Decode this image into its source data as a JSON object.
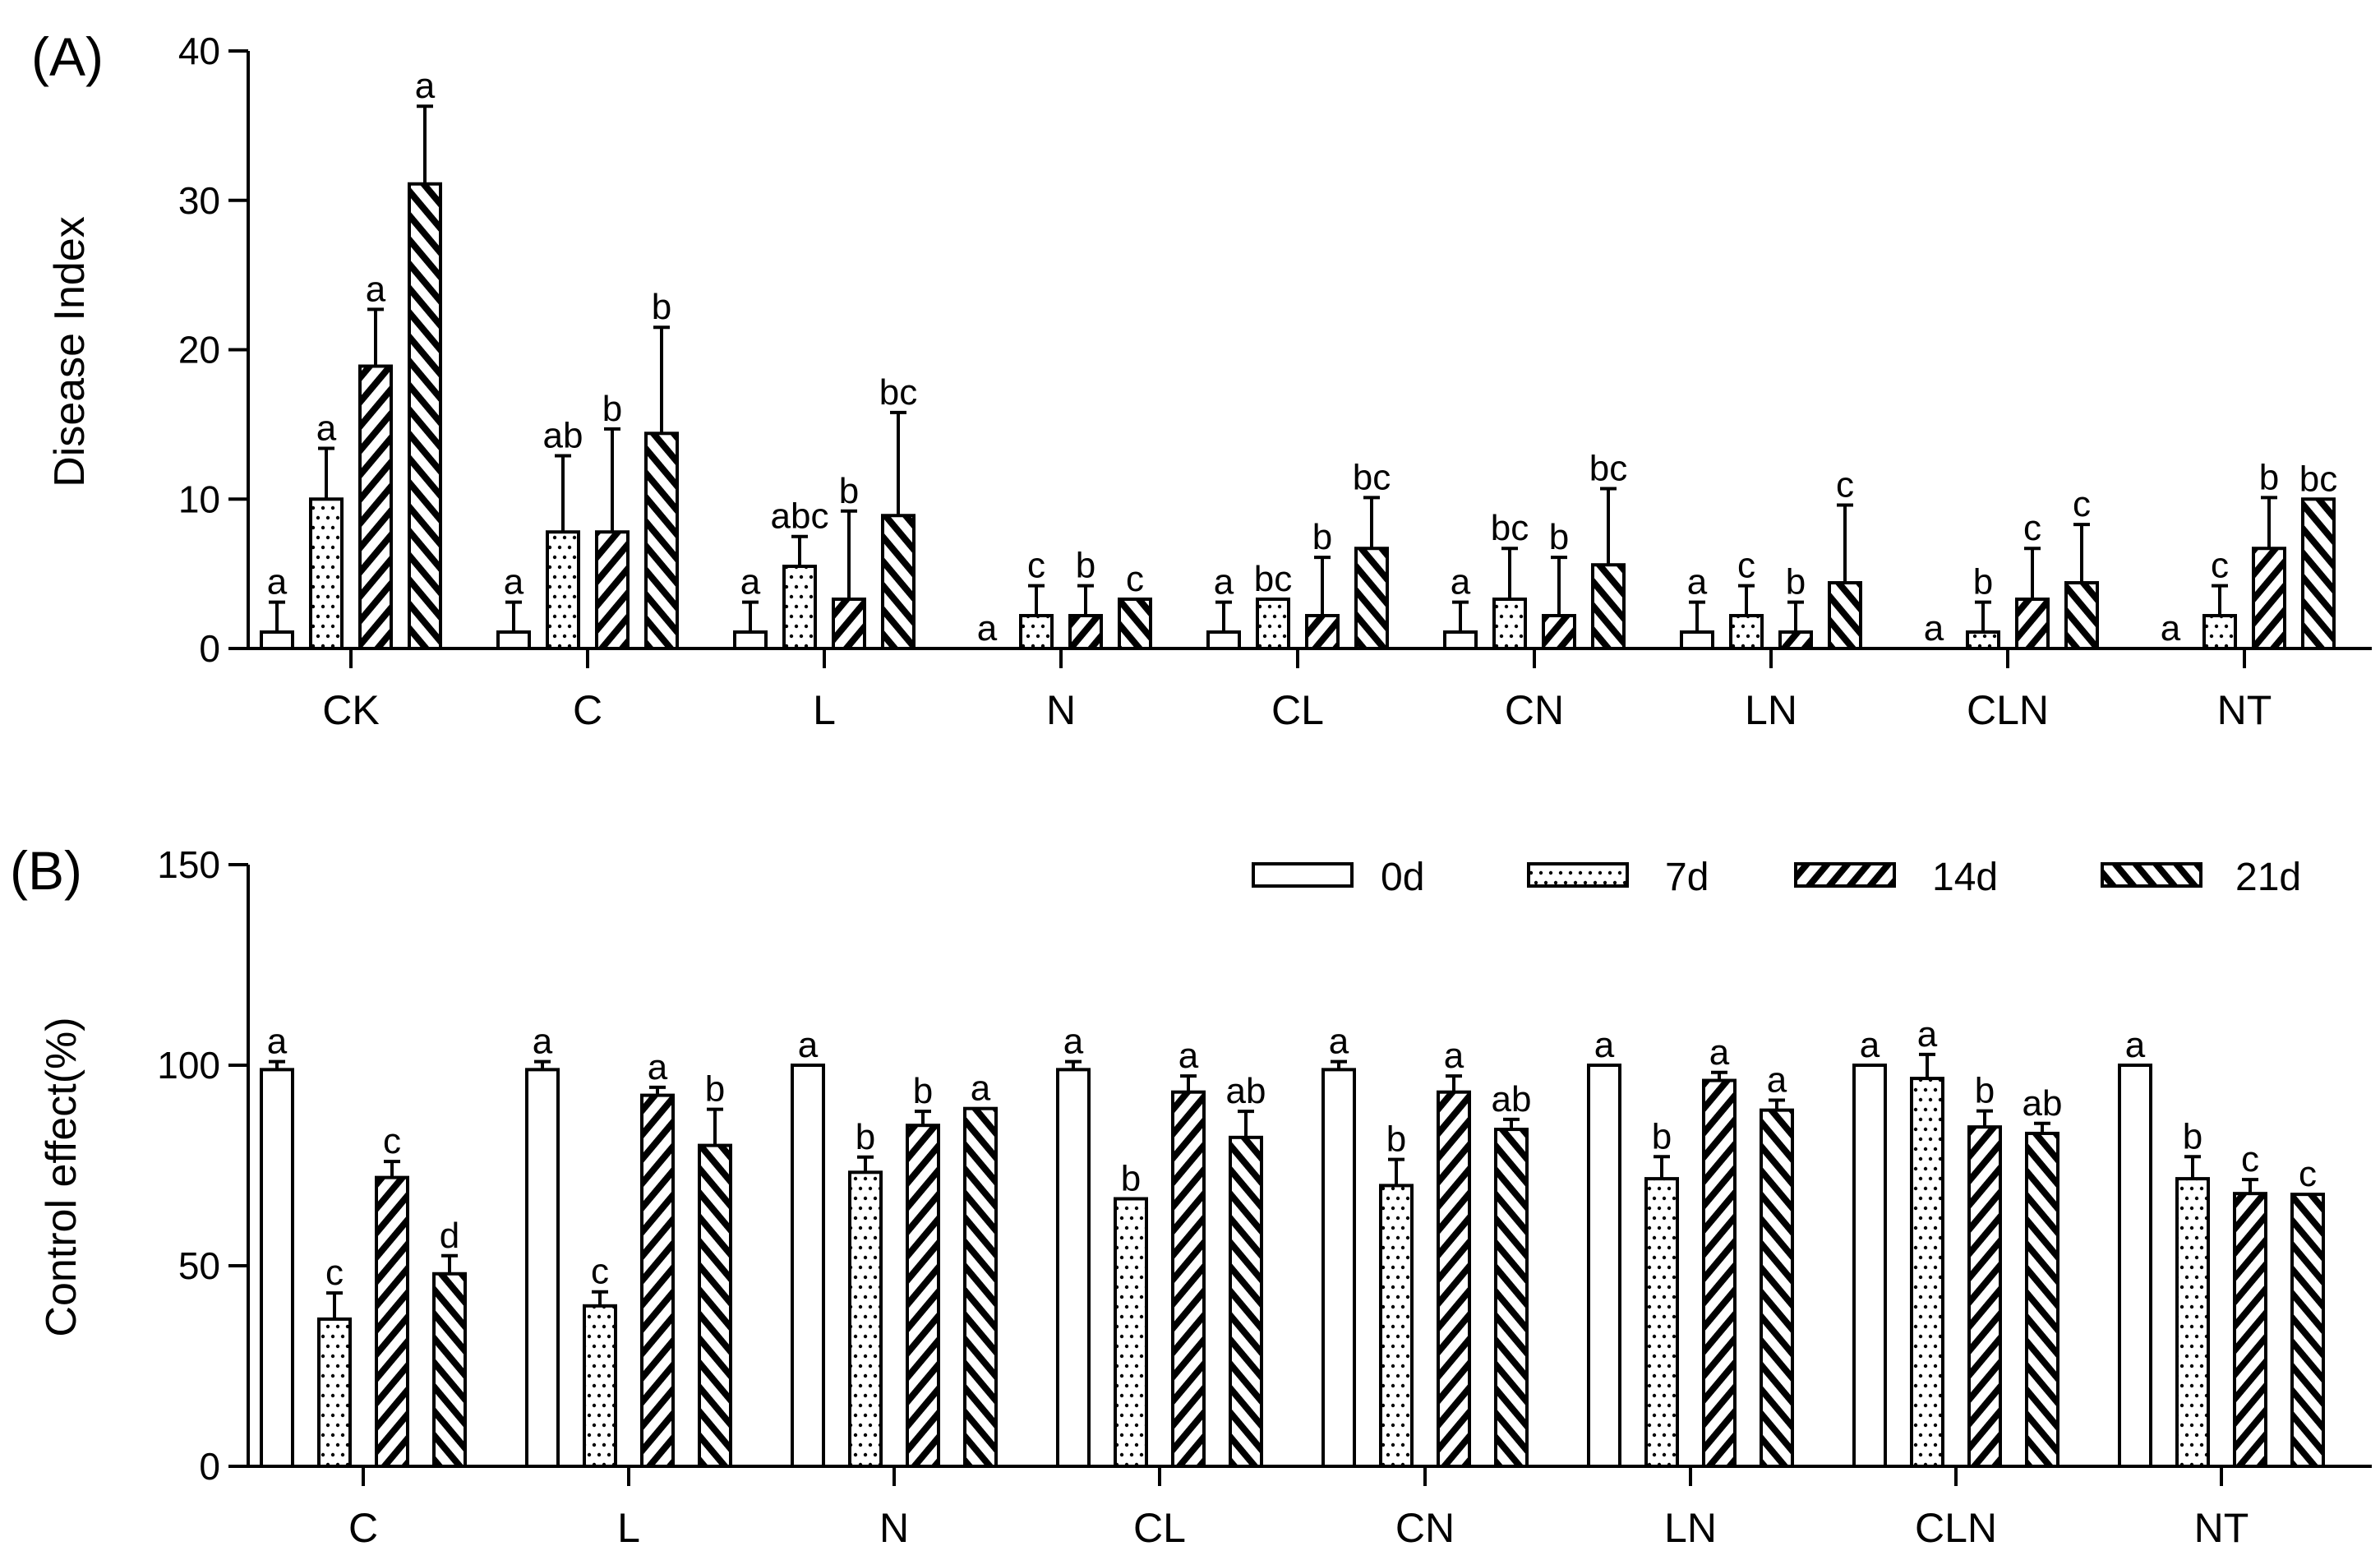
{
  "legend": {
    "items": [
      "0d",
      "7d",
      "14d",
      "21d"
    ]
  },
  "chart_data": [
    {
      "panel": "(A)",
      "type": "bar",
      "ylabel": "Disease Index",
      "ylim": [
        0,
        40
      ],
      "yticks": [
        0,
        10,
        20,
        30,
        40
      ],
      "categories": [
        "CK",
        "C",
        "L",
        "N",
        "CL",
        "CN",
        "LN",
        "CLN",
        "NT"
      ],
      "series": [
        {
          "name": "0d",
          "pattern": "empty",
          "values": [
            1.1,
            1.1,
            1.1,
            0,
            1.1,
            1.1,
            1.1,
            0,
            0
          ],
          "errors": [
            2,
            2,
            2,
            0,
            2,
            2,
            2,
            0,
            0
          ],
          "letters": [
            "a",
            "a",
            "a",
            "a",
            "a",
            "a",
            "a",
            "a",
            "a"
          ]
        },
        {
          "name": "7d",
          "pattern": "dots",
          "values": [
            10,
            7.8,
            5.5,
            2.2,
            3.3,
            3.3,
            2.2,
            1.1,
            2.2
          ],
          "errors": [
            3.4,
            5.1,
            2,
            2,
            0,
            3.4,
            2,
            2,
            2
          ],
          "letters": [
            "a",
            "ab",
            "abc",
            "c",
            "bc",
            "bc",
            "c",
            "b",
            "c"
          ]
        },
        {
          "name": "14d",
          "pattern": "hatch-right",
          "values": [
            18.9,
            7.8,
            3.3,
            2.2,
            2.2,
            2.2,
            1.1,
            3.3,
            6.7
          ],
          "errors": [
            3.8,
            6.9,
            5.9,
            2,
            3.9,
            3.9,
            2,
            3.4,
            3.4
          ],
          "letters": [
            "a",
            "b",
            "b",
            "b",
            "b",
            "b",
            "b",
            "c",
            "b"
          ]
        },
        {
          "name": "21d",
          "pattern": "hatch-left",
          "values": [
            31.1,
            14.4,
            8.9,
            3.3,
            6.7,
            5.6,
            4.4,
            4.4,
            10
          ],
          "errors": [
            5.2,
            7.1,
            6.9,
            0,
            3.4,
            5.1,
            5.2,
            3.9,
            0
          ],
          "letters": [
            "a",
            "b",
            "bc",
            "c",
            "bc",
            "bc",
            "c",
            "c",
            "bc"
          ]
        }
      ]
    },
    {
      "panel": "(B)",
      "type": "bar",
      "ylabel": "Control effect(%)",
      "ylim": [
        0,
        150
      ],
      "yticks": [
        0,
        50,
        100,
        150
      ],
      "categories": [
        "C",
        "L",
        "N",
        "CL",
        "CN",
        "LN",
        "CLN",
        "NT"
      ],
      "legend_position": "top-right",
      "series": [
        {
          "name": "0d",
          "pattern": "empty",
          "values": [
            98.9,
            98.9,
            100,
            98.9,
            98.9,
            100,
            100,
            100
          ],
          "errors": [
            2,
            2,
            0,
            2,
            2,
            0,
            0,
            0
          ],
          "letters": [
            "a",
            "a",
            "a",
            "a",
            "a",
            "a",
            "a",
            "a"
          ]
        },
        {
          "name": "7d",
          "pattern": "dots",
          "values": [
            36.7,
            40,
            73.3,
            66.7,
            70,
            71.7,
            96.7,
            71.7
          ],
          "errors": [
            6.5,
            3.5,
            3.8,
            0,
            6.5,
            5.5,
            6,
            5.5
          ],
          "letters": [
            "c",
            "c",
            "b",
            "b",
            "b",
            "b",
            "a",
            "b"
          ]
        },
        {
          "name": "14d",
          "pattern": "hatch-right",
          "values": [
            72,
            92.5,
            85,
            93.3,
            93.3,
            96.2,
            84.6,
            68
          ],
          "errors": [
            4,
            2,
            3.5,
            4,
            4,
            2,
            4,
            3.5
          ],
          "letters": [
            "c",
            "a",
            "b",
            "a",
            "a",
            "a",
            "b",
            "c"
          ]
        },
        {
          "name": "21d",
          "pattern": "hatch-left",
          "values": [
            48,
            80,
            89.2,
            82,
            84,
            88.8,
            83,
            67.8
          ],
          "errors": [
            4.5,
            9,
            0,
            6.5,
            2.5,
            2.5,
            2.5,
            0
          ],
          "letters": [
            "d",
            "b",
            "a",
            "ab",
            "ab",
            "a",
            "ab",
            "c"
          ]
        }
      ]
    }
  ]
}
